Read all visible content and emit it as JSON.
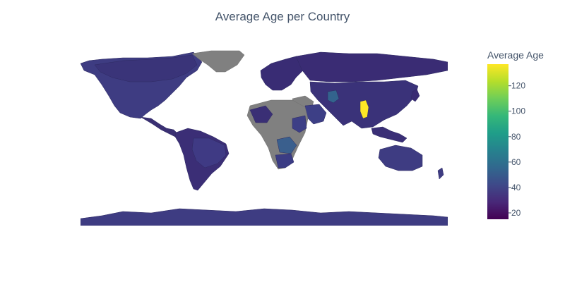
{
  "title": "Average Age per Country",
  "colorbar": {
    "title": "Average Age",
    "min": 15,
    "max": 137,
    "ticks": [
      20,
      40,
      60,
      80,
      100,
      120
    ],
    "colorscale": [
      "#440154",
      "#482878",
      "#3e4989",
      "#31688e",
      "#26828e",
      "#1f9e89",
      "#35b779",
      "#6ece58",
      "#b5de2b",
      "#fde725"
    ]
  },
  "colors": {
    "no_data": "#808080",
    "ocean": "#ffffff",
    "border": "#4a4a6a"
  },
  "map_data": {
    "type": "choropleth",
    "projection": "equirectangular",
    "lat_range": [
      -90,
      90
    ],
    "lon_range": [
      -180,
      180
    ]
  }
}
